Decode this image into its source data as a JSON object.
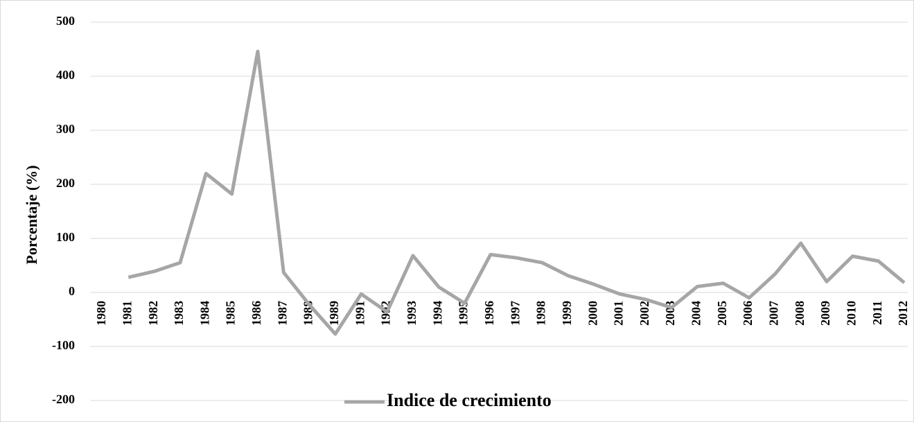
{
  "chart_data": {
    "type": "line",
    "y_label": "Porcentaje (%)",
    "categories": [
      "1980",
      "1981",
      "1982",
      "1983",
      "1984",
      "1985",
      "1986",
      "1987",
      "1988",
      "1989",
      "1991",
      "1992",
      "1993",
      "1994",
      "1995",
      "1996",
      "1997",
      "1998",
      "1999",
      "2000",
      "2001",
      "2002",
      "2003",
      "2004",
      "2005",
      "2006",
      "2007",
      "2008",
      "2009",
      "2010",
      "2011",
      "2012"
    ],
    "series": [
      {
        "name": "Indice de crecimiento",
        "color": "#a6a6a6",
        "values": [
          null,
          28,
          39,
          55,
          220,
          182,
          446,
          37,
          -23,
          -77,
          -3,
          -36,
          68,
          10,
          -20,
          70,
          64,
          55,
          31,
          15,
          -3,
          -13,
          -28,
          11,
          17,
          -10,
          34,
          91,
          20,
          67,
          58,
          18
        ]
      }
    ],
    "ylim": [
      -200,
      500
    ],
    "yticks": [
      -200,
      -100,
      0,
      100,
      200,
      300,
      400,
      500
    ],
    "grid": true,
    "legend": "bottom"
  }
}
